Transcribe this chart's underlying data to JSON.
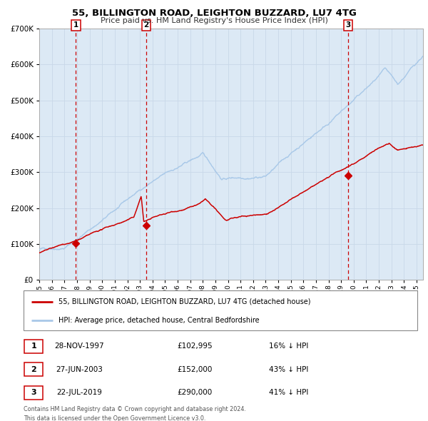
{
  "title_line1": "55, BILLINGTON ROAD, LEIGHTON BUZZARD, LU7 4TG",
  "title_line2": "Price paid vs. HM Land Registry's House Price Index (HPI)",
  "ylim": [
    0,
    700000
  ],
  "yticks": [
    0,
    100000,
    200000,
    300000,
    400000,
    500000,
    600000,
    700000
  ],
  "ytick_labels": [
    "£0",
    "£100K",
    "£200K",
    "£300K",
    "£400K",
    "£500K",
    "£600K",
    "£700K"
  ],
  "xlim_start": 1995.0,
  "xlim_end": 2025.5,
  "xticks": [
    1995,
    1996,
    1997,
    1998,
    1999,
    2000,
    2001,
    2002,
    2003,
    2004,
    2005,
    2006,
    2007,
    2008,
    2009,
    2010,
    2011,
    2012,
    2013,
    2014,
    2015,
    2016,
    2017,
    2018,
    2019,
    2020,
    2021,
    2022,
    2023,
    2024,
    2025
  ],
  "hpi_color": "#a8c8e8",
  "price_color": "#cc0000",
  "marker_color": "#cc0000",
  "vline_color": "#cc0000",
  "bg_shade_color": "#dce9f5",
  "grid_color": "#c8d8e8",
  "purchases": [
    {
      "date_year": 1997.91,
      "price": 102995,
      "label": "1"
    },
    {
      "date_year": 2003.49,
      "price": 152000,
      "label": "2"
    },
    {
      "date_year": 2019.55,
      "price": 290000,
      "label": "3"
    }
  ],
  "legend_line1": "55, BILLINGTON ROAD, LEIGHTON BUZZARD, LU7 4TG (detached house)",
  "legend_line2": "HPI: Average price, detached house, Central Bedfordshire",
  "table_rows": [
    {
      "num": "1",
      "date": "28-NOV-1997",
      "price": "£102,995",
      "hpi": "16% ↓ HPI"
    },
    {
      "num": "2",
      "date": "27-JUN-2003",
      "price": "£152,000",
      "hpi": "43% ↓ HPI"
    },
    {
      "num": "3",
      "date": "22-JUL-2019",
      "price": "£290,000",
      "hpi": "41% ↓ HPI"
    }
  ],
  "footer_line1": "Contains HM Land Registry data © Crown copyright and database right 2024.",
  "footer_line2": "This data is licensed under the Open Government Licence v3.0.",
  "bg_color": "#ffffff"
}
